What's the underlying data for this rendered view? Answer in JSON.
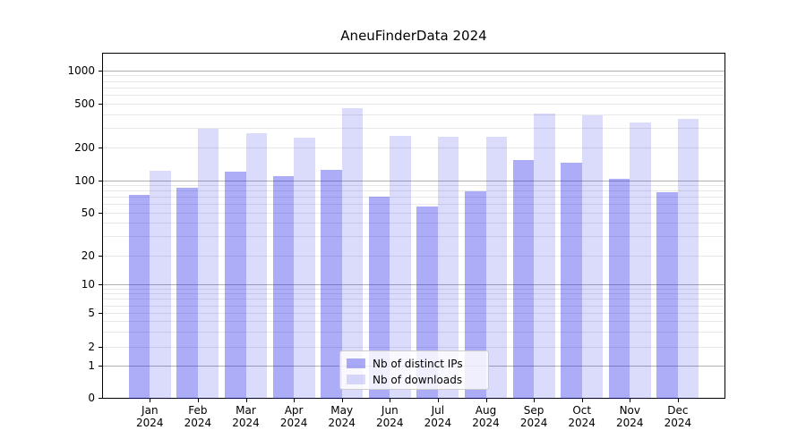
{
  "title": "AneuFinderData 2024",
  "legend": {
    "items": [
      {
        "label": "Nb of distinct IPs",
        "color": "rgba(28,28,232,0.36)"
      },
      {
        "label": "Nb of downloads",
        "color": "rgba(28,28,232,0.155)"
      }
    ]
  },
  "colors": {
    "ips_bar": "rgba(28,28,232,0.36)",
    "downloads_bar": "rgba(28,28,232,0.155)",
    "grid_major": "#b0b0b0",
    "grid_minor": "#e8e8e8",
    "spine": "#000000"
  },
  "chart_data": {
    "type": "bar",
    "title": "AneuFinderData 2024",
    "categories": [
      "Jan 2024",
      "Feb 2024",
      "Mar 2024",
      "Apr 2024",
      "May 2024",
      "Jun 2024",
      "Jul 2024",
      "Aug 2024",
      "Sep 2024",
      "Oct 2024",
      "Nov 2024",
      "Dec 2024"
    ],
    "series": [
      {
        "name": "Nb of distinct IPs",
        "values": [
          75,
          87,
          122,
          112,
          128,
          72,
          58,
          80,
          155,
          148,
          105,
          79
        ]
      },
      {
        "name": "Nb of downloads",
        "values": [
          125,
          300,
          275,
          250,
          465,
          260,
          255,
          255,
          415,
          400,
          340,
          370
        ]
      }
    ],
    "xlabel": "",
    "ylabel": "",
    "yscale": "log-like (asinh), 0 at baseline",
    "yticks": [
      0,
      1,
      2,
      5,
      10,
      20,
      50,
      100,
      200,
      500,
      1000
    ],
    "ylim": [
      0,
      1430
    ],
    "grid": true,
    "legend_position": "lower center"
  }
}
